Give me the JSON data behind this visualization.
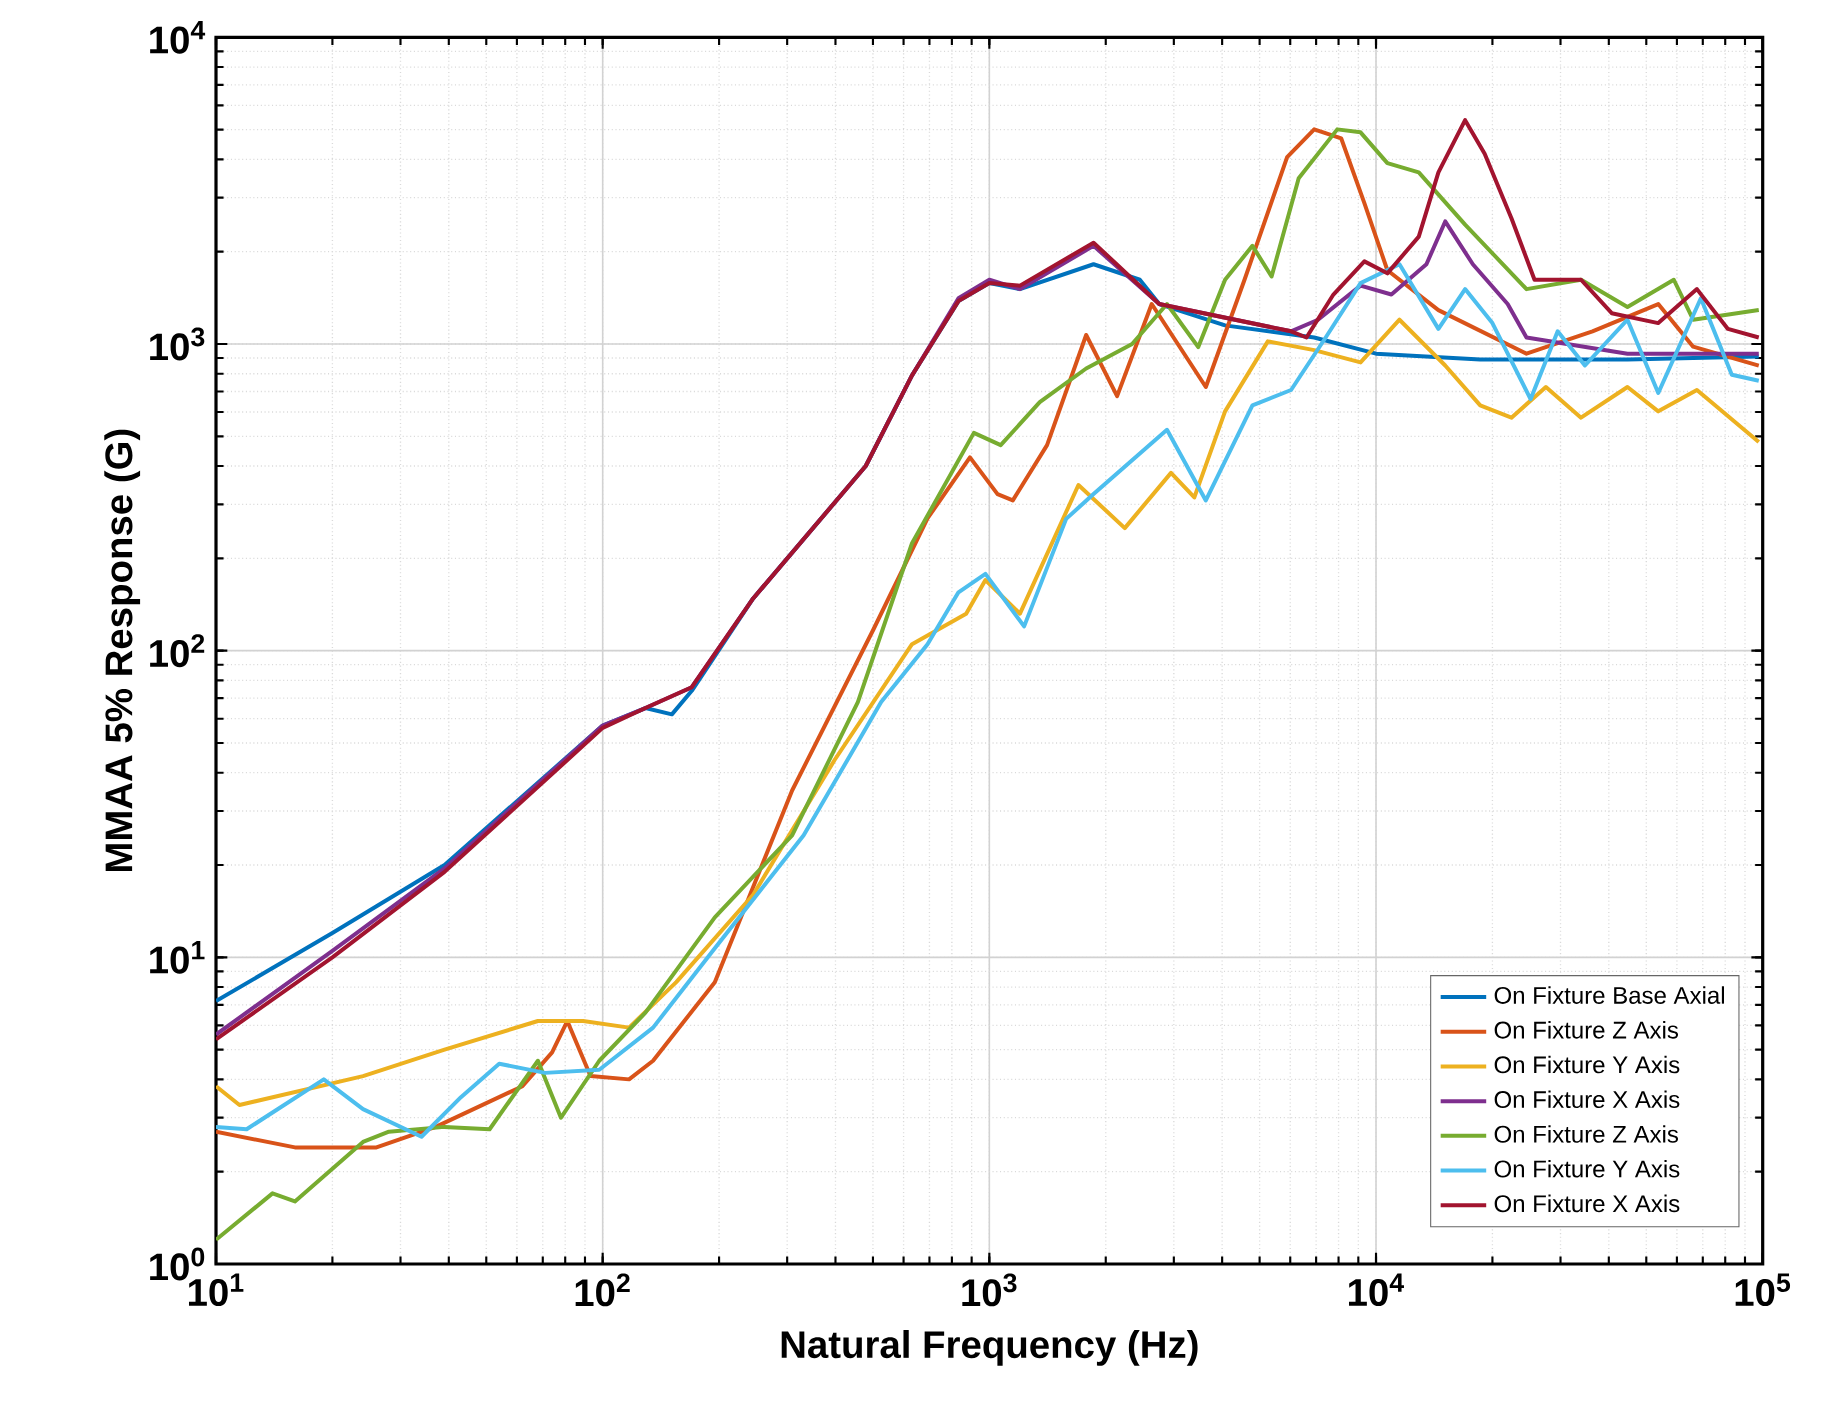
{
  "chart_data": {
    "type": "line",
    "xlabel": "Natural Frequency (Hz)",
    "ylabel": "MMAA 5% Response (G)",
    "log": "xy",
    "grid": true,
    "legend": "bottom right",
    "line_style": "solid",
    "xlim": [
      10,
      100000
    ],
    "ylim": [
      1,
      10000
    ],
    "xticks": [
      {
        "value": 10,
        "label": "10$^{1}$"
      },
      {
        "value": 100,
        "label": "10$^{2}$"
      },
      {
        "value": 1000,
        "label": "10$^{3}$"
      },
      {
        "value": 10000,
        "label": "10$^{4}$"
      },
      {
        "value": 100000,
        "label": "10$^{5}$"
      }
    ],
    "yticks": [
      {
        "value": 1,
        "label": "10$^{0}$"
      },
      {
        "value": 10,
        "label": "10$^{1}$"
      },
      {
        "value": 100,
        "label": "10$^{2}$"
      },
      {
        "value": 1000,
        "label": "10$^{3}$"
      },
      {
        "value": 10000,
        "label": "10$^{4}$"
      }
    ],
    "series": [
      {
        "name": "On Fixture Base Axial",
        "color": "#0072bd",
        "x": [
          10,
          20,
          39,
          100,
          129,
          151,
          170,
          245,
          479,
          631,
          832,
          1000,
          1200,
          1860,
          2450,
          2750,
          4070,
          6920,
          10000,
          18600,
          44700,
          97700
        ],
        "values": [
          7.2,
          12,
          20,
          57,
          65,
          62,
          74,
          148,
          400,
          790,
          1380,
          1580,
          1510,
          1820,
          1620,
          1350,
          1150,
          1050,
          930,
          890,
          890,
          910
        ]
      },
      {
        "name": "On Fixture Z Axis",
        "color": "#d95319",
        "x": [
          10,
          16,
          26,
          37,
          62,
          74,
          81,
          93,
          117,
          135,
          195,
          309,
          501,
          692,
          891,
          1050,
          1150,
          1410,
          1780,
          2140,
          2630,
          3630,
          4570,
          5890,
          6920,
          8130,
          9330,
          10700,
          14500,
          24500,
          36300,
          53700,
          66100,
          97700
        ],
        "values": [
          2.7,
          2.4,
          2.4,
          2.8,
          3.8,
          4.9,
          6.2,
          4.1,
          4.0,
          4.6,
          8.3,
          35,
          117,
          270,
          427,
          324,
          309,
          468,
          1070,
          676,
          1350,
          724,
          1620,
          4070,
          5010,
          4680,
          2880,
          1740,
          1290,
          930,
          1100,
          1350,
          980,
          850
        ]
      },
      {
        "name": "On Fixture Y Axis",
        "color": "#edb120",
        "x": [
          10,
          11.5,
          24,
          39,
          68,
          89,
          117,
          155,
          245,
          398,
          631,
          871,
          977,
          1200,
          1700,
          2240,
          2950,
          3390,
          4070,
          5250,
          6920,
          9120,
          11500,
          15100,
          18600,
          22400,
          27500,
          33900,
          44700,
          53700,
          67600,
          97700
        ],
        "values": [
          3.8,
          3.3,
          4.1,
          5.0,
          6.2,
          6.2,
          5.9,
          8.3,
          16,
          44,
          105,
          132,
          170,
          132,
          347,
          251,
          380,
          316,
          603,
          1020,
          955,
          871,
          1200,
          851,
          631,
          575,
          724,
          575,
          724,
          603,
          708,
          479
        ]
      },
      {
        "name": "On Fixture X Axis",
        "color": "#7e2f8e",
        "x": [
          10,
          20,
          39,
          100,
          129,
          170,
          245,
          479,
          631,
          832,
          1000,
          1200,
          1860,
          2750,
          6030,
          7080,
          9120,
          10960,
          13500,
          15100,
          17800,
          21900,
          24500,
          44700,
          97700
        ],
        "values": [
          5.6,
          10.5,
          19.5,
          57,
          65,
          76,
          148,
          400,
          790,
          1410,
          1620,
          1510,
          2090,
          1350,
          1100,
          1200,
          1550,
          1450,
          1820,
          2510,
          1820,
          1350,
          1050,
          930,
          930
        ]
      },
      {
        "name": "On Fixture Z Axis",
        "color": "#77ac30",
        "x": [
          10,
          14,
          16,
          24,
          28,
          39,
          51,
          68,
          78,
          98,
          129,
          195,
          309,
          457,
          631,
          912,
          1070,
          1350,
          1780,
          2340,
          2880,
          3470,
          4070,
          4790,
          5370,
          6310,
          7940,
          9120,
          10700,
          12900,
          17000,
          24500,
          33900,
          44700,
          58900,
          66100,
          97700
        ],
        "values": [
          1.2,
          1.7,
          1.6,
          2.5,
          2.7,
          2.8,
          2.75,
          4.6,
          3.0,
          4.6,
          6.6,
          13.5,
          25,
          68,
          224,
          513,
          468,
          646,
          832,
          1000,
          1350,
          977,
          1620,
          2090,
          1660,
          3470,
          5010,
          4900,
          3890,
          3630,
          2450,
          1510,
          1620,
          1320,
          1620,
          1200,
          1290
        ]
      },
      {
        "name": "On Fixture Y Axis",
        "color": "#4dbeee",
        "x": [
          10,
          12,
          19,
          24,
          34,
          43,
          54,
          71,
          98,
          135,
          195,
          331,
          525,
          692,
          832,
          977,
          1230,
          1580,
          1860,
          2880,
          3630,
          4790,
          6030,
          7410,
          9120,
          11500,
          14500,
          17000,
          20000,
          25100,
          29500,
          34700,
          44700,
          53700,
          69200,
          83200,
          97700
        ],
        "values": [
          2.8,
          2.75,
          4.0,
          3.2,
          2.6,
          3.5,
          4.5,
          4.2,
          4.3,
          5.9,
          10.7,
          25,
          68,
          105,
          155,
          178,
          120,
          269,
          324,
          525,
          309,
          631,
          708,
          1050,
          1580,
          1820,
          1120,
          1510,
          1170,
          661,
          1100,
          851,
          1200,
          692,
          1410,
          794,
          759
        ]
      },
      {
        "name": "On Fixture X Axis",
        "color": "#a2142f",
        "x": [
          10,
          20,
          39,
          100,
          129,
          170,
          245,
          479,
          631,
          832,
          1000,
          1200,
          1860,
          2750,
          6030,
          6610,
          7760,
          9330,
          10700,
          12900,
          14500,
          17000,
          19100,
          22400,
          25700,
          33900,
          40700,
          53700,
          67600,
          81300,
          97700
        ],
        "values": [
          5.4,
          10,
          19,
          56,
          65,
          76,
          148,
          400,
          790,
          1380,
          1580,
          1550,
          2140,
          1350,
          1100,
          1050,
          1450,
          1860,
          1700,
          2240,
          3630,
          5370,
          4170,
          2570,
          1620,
          1620,
          1260,
          1170,
          1510,
          1120,
          1050
        ]
      }
    ]
  }
}
